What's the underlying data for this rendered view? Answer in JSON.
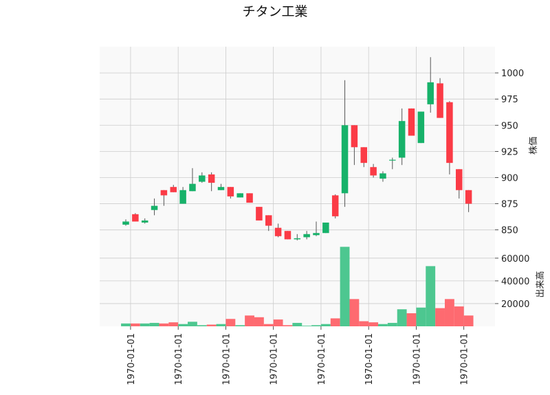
{
  "chart_data": {
    "type": "candlestick",
    "title": "チタン工業",
    "price_axis": {
      "label": "株価",
      "ticks": [
        850,
        875,
        900,
        925,
        950,
        975,
        1000
      ],
      "ylim": [
        836,
        1025
      ],
      "side": "right"
    },
    "volume_axis": {
      "label": "出来高",
      "ticks": [
        20000,
        40000,
        60000
      ],
      "ylim": [
        0,
        72000
      ],
      "side": "right"
    },
    "x_tick_labels": [
      "1970-01-01",
      "1970-01-01",
      "1970-01-01",
      "1970-01-01",
      "1970-01-01",
      "1970-01-01",
      "1970-01-01",
      "1970-01-01"
    ],
    "x_tick_positions": [
      0.5,
      5.5,
      10.5,
      15.5,
      20.5,
      25.5,
      30.5,
      35.5
    ],
    "grid": true,
    "colors": {
      "up": "#17b26a",
      "down": "#fb3b46",
      "up_volume": "#4dc790",
      "down_volume": "#fe6a70",
      "plot_bg": "#f9f9f9",
      "grid": "#cccccc",
      "wick": "#555555"
    },
    "candles": [
      {
        "open": 855,
        "high": 860,
        "low": 854,
        "close": 858,
        "volume": 2500
      },
      {
        "open": 865,
        "high": 866,
        "low": 858,
        "close": 858,
        "volume": 2500
      },
      {
        "open": 857,
        "high": 861,
        "low": 856,
        "close": 859,
        "volume": 2500
      },
      {
        "open": 869,
        "high": 880,
        "low": 864,
        "close": 873,
        "volume": 3000
      },
      {
        "open": 888,
        "high": 888,
        "low": 873,
        "close": 883,
        "volume": 2500
      },
      {
        "open": 891,
        "high": 893,
        "low": 886,
        "close": 886,
        "volume": 3500
      },
      {
        "open": 875,
        "high": 891,
        "low": 875,
        "close": 888,
        "volume": 2000
      },
      {
        "open": 887,
        "high": 909,
        "low": 887,
        "close": 894,
        "volume": 4000
      },
      {
        "open": 896,
        "high": 905,
        "low": 895,
        "close": 902,
        "volume": 1000
      },
      {
        "open": 903,
        "high": 905,
        "low": 887,
        "close": 895,
        "volume": 1500
      },
      {
        "open": 888,
        "high": 894,
        "low": 888,
        "close": 891,
        "volume": 2000
      },
      {
        "open": 891,
        "high": 891,
        "low": 880,
        "close": 882,
        "volume": 6500
      },
      {
        "open": 881,
        "high": 885,
        "low": 881,
        "close": 885,
        "volume": 1000
      },
      {
        "open": 885,
        "high": 885,
        "low": 876,
        "close": 876,
        "volume": 9500
      },
      {
        "open": 872,
        "high": 872,
        "low": 859,
        "close": 859,
        "volume": 8000
      },
      {
        "open": 864,
        "high": 864,
        "low": 849,
        "close": 854,
        "volume": 2000
      },
      {
        "open": 852,
        "high": 856,
        "low": 843,
        "close": 844,
        "volume": 6000
      },
      {
        "open": 849,
        "high": 849,
        "low": 841,
        "close": 841,
        "volume": 1000
      },
      {
        "open": 841,
        "high": 846,
        "low": 840,
        "close": 842,
        "volume": 3000
      },
      {
        "open": 843,
        "high": 849,
        "low": 841,
        "close": 846,
        "volume": 500
      },
      {
        "open": 845,
        "high": 858,
        "low": 844,
        "close": 847,
        "volume": 1000
      },
      {
        "open": 847,
        "high": 857,
        "low": 847,
        "close": 857,
        "volume": 2000
      },
      {
        "open": 883,
        "high": 884,
        "low": 861,
        "close": 863,
        "volume": 7000
      },
      {
        "open": 885,
        "high": 993,
        "low": 872,
        "close": 950,
        "volume": 70000
      },
      {
        "open": 950,
        "high": 950,
        "low": 912,
        "close": 929,
        "volume": 24000
      },
      {
        "open": 929,
        "high": 929,
        "low": 910,
        "close": 914,
        "volume": 4500
      },
      {
        "open": 910,
        "high": 913,
        "low": 900,
        "close": 902,
        "volume": 3500
      },
      {
        "open": 899,
        "high": 906,
        "low": 896,
        "close": 904,
        "volume": 2000
      },
      {
        "open": 917,
        "high": 919,
        "low": 908,
        "close": 917,
        "volume": 3000
      },
      {
        "open": 919,
        "high": 966,
        "low": 912,
        "close": 954,
        "volume": 15000
      },
      {
        "open": 966,
        "high": 966,
        "low": 940,
        "close": 940,
        "volume": 11500
      },
      {
        "open": 933,
        "high": 963,
        "low": 933,
        "close": 963,
        "volume": 16500
      },
      {
        "open": 970,
        "high": 1015,
        "low": 962,
        "close": 991,
        "volume": 53000
      },
      {
        "open": 990,
        "high": 995,
        "low": 957,
        "close": 957,
        "volume": 16000
      },
      {
        "open": 972,
        "high": 973,
        "low": 903,
        "close": 914,
        "volume": 24000
      },
      {
        "open": 908,
        "high": 908,
        "low": 880,
        "close": 888,
        "volume": 17500
      },
      {
        "open": 888,
        "high": 888,
        "low": 867,
        "close": 875,
        "volume": 9500
      }
    ]
  }
}
